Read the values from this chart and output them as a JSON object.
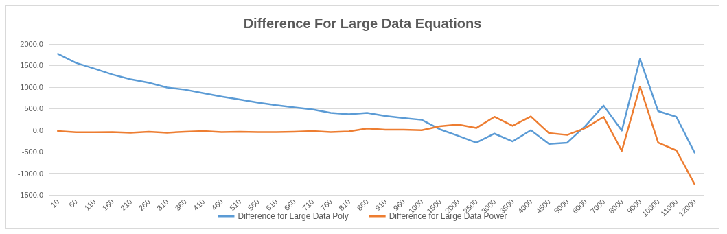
{
  "chart_data": {
    "type": "line",
    "title": "Difference For Large Data Equations",
    "categories": [
      "10",
      "60",
      "110",
      "160",
      "210",
      "260",
      "310",
      "360",
      "410",
      "460",
      "510",
      "560",
      "610",
      "660",
      "710",
      "760",
      "810",
      "860",
      "910",
      "960",
      "1000",
      "1500",
      "2000",
      "2500",
      "3000",
      "3500",
      "4000",
      "4500",
      "5000",
      "6000",
      "7000",
      "8000",
      "9000",
      "10000",
      "11000",
      "12000"
    ],
    "series": [
      {
        "name": "Difference for Large Data Poly",
        "color": "#5b9bd5",
        "values": [
          1770,
          1560,
          1430,
          1290,
          1180,
          1100,
          990,
          940,
          860,
          780,
          710,
          640,
          580,
          530,
          480,
          400,
          370,
          400,
          330,
          280,
          240,
          20,
          -130,
          -290,
          -80,
          -260,
          0,
          -320,
          -290,
          100,
          570,
          -10,
          1650,
          440,
          310,
          -520
        ]
      },
      {
        "name": "Difference for Large Data Power",
        "color": "#ed7d31",
        "values": [
          -20,
          -50,
          -50,
          -45,
          -60,
          -35,
          -60,
          -35,
          -20,
          -45,
          -35,
          -45,
          -45,
          -35,
          -20,
          -45,
          -30,
          40,
          10,
          10,
          0,
          90,
          130,
          50,
          310,
          100,
          320,
          -70,
          -110,
          50,
          310,
          -480,
          1010,
          -290,
          -470,
          -1250
        ]
      }
    ],
    "ylim": [
      -1500,
      2000
    ],
    "yticks": [
      {
        "value": -1500,
        "label": "-1500.0"
      },
      {
        "value": -1000,
        "label": "-1000.0"
      },
      {
        "value": -500,
        "label": "-500.0"
      },
      {
        "value": 0,
        "label": "0.0"
      },
      {
        "value": 500,
        "label": "500.0"
      },
      {
        "value": 1000,
        "label": "1000.0"
      },
      {
        "value": 1500,
        "label": "1500.0"
      },
      {
        "value": 2000,
        "label": "2000.0"
      }
    ],
    "grid": "y",
    "legend": "bottom",
    "marker": "none",
    "line_style": "solid"
  }
}
